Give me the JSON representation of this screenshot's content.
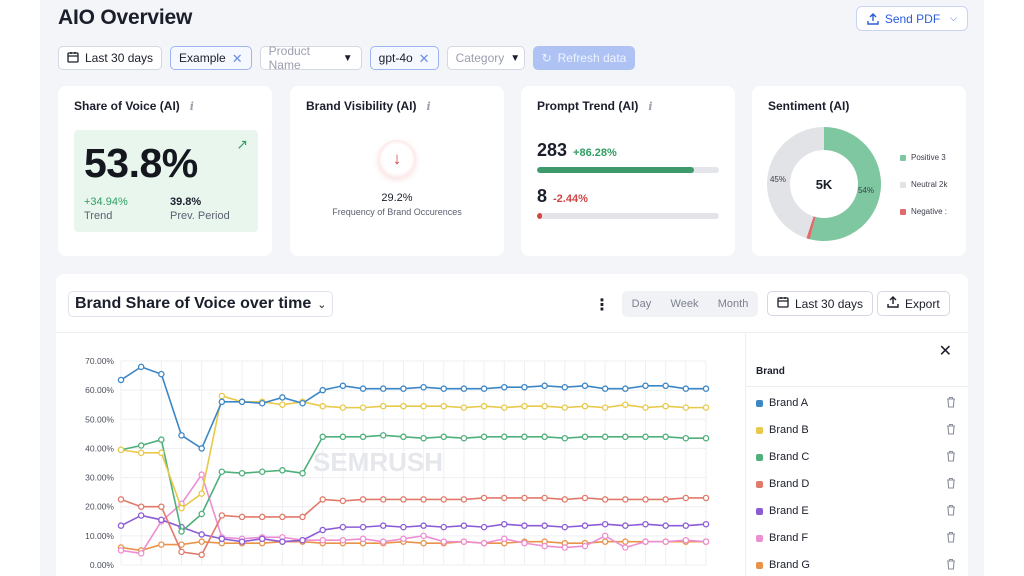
{
  "header": {
    "title": "AIO Overview",
    "send_pdf_label": "Send PDF"
  },
  "filters": {
    "date_range": "Last 30 days",
    "tag_example": "Example",
    "product_placeholder": "Product Name",
    "tag_model": "gpt-4o",
    "category_placeholder": "Category",
    "refresh_label": "Refresh data"
  },
  "cards": {
    "share_of_voice": {
      "title": "Share of Voice (AI)",
      "value": "53.8%",
      "trend_value": "+34.94%",
      "trend_label": "Trend",
      "prev_value": "39.8%",
      "prev_label": "Prev. Period"
    },
    "brand_visibility": {
      "title": "Brand Visibility (AI)",
      "value": "29.2%",
      "label": "Frequency of Brand Occurences"
    },
    "prompt_trend": {
      "title": "Prompt Trend (AI)",
      "rows": [
        {
          "value": "283",
          "change": "+86.28%",
          "fill": 0.86
        },
        {
          "value": "8",
          "change": "-2.44%",
          "fill": 0.02
        }
      ]
    },
    "sentiment": {
      "title": "Sentiment (AI)",
      "center": "5K",
      "slices": [
        {
          "label": "Positive 3",
          "pct_label": "54%",
          "value": 54,
          "color": "#7fc7a0"
        },
        {
          "label": "Neutral 2k",
          "pct_label": "45%",
          "value": 45,
          "color": "#e2e3e6"
        },
        {
          "label": "Negative :",
          "pct_label": "",
          "value": 1,
          "color": "#e16a6a"
        }
      ]
    }
  },
  "panel": {
    "title": "Brand Share of Voice over time",
    "granularity": [
      "Day",
      "Week",
      "Month"
    ],
    "date_range": "Last 30 days",
    "export_label": "Export",
    "brand_header": "Brand",
    "watermark": "SEMRUSH",
    "brands": [
      {
        "name": "Brand A",
        "color": "#3d86c6"
      },
      {
        "name": "Brand B",
        "color": "#e8c94a"
      },
      {
        "name": "Brand C",
        "color": "#4fb07b"
      },
      {
        "name": "Brand D",
        "color": "#e07a6a"
      },
      {
        "name": "Brand E",
        "color": "#8c5cd6"
      },
      {
        "name": "Brand F",
        "color": "#ec8fd2"
      },
      {
        "name": "Brand G",
        "color": "#e9934a"
      }
    ]
  },
  "chart_data": {
    "type": "line",
    "ylim": [
      0,
      70
    ],
    "yticks": [
      "0.00%",
      "10.00%",
      "20.00%",
      "30.00%",
      "40.00%",
      "50.00%",
      "60.00%",
      "70.00%"
    ],
    "x": [
      1,
      2,
      3,
      4,
      5,
      6,
      7,
      8,
      9,
      10,
      11,
      12,
      13,
      14,
      15,
      16,
      17,
      18,
      19,
      20,
      21,
      22,
      23,
      24,
      25,
      26,
      27,
      28,
      29,
      30
    ],
    "series": [
      {
        "name": "Brand A",
        "color": "#3d86c6",
        "values": [
          63.5,
          68,
          65.5,
          44.5,
          40,
          56,
          56,
          55.5,
          57.5,
          55.5,
          60,
          61.5,
          60.5,
          60.5,
          60.5,
          61,
          60.5,
          60.5,
          60.5,
          61,
          61,
          61.5,
          61,
          61.5,
          60.5,
          60.5,
          61.5,
          61.5,
          60.5,
          60.5
        ]
      },
      {
        "name": "Brand B",
        "color": "#e8c94a",
        "values": [
          39.5,
          38.5,
          38.5,
          19.5,
          24.5,
          58,
          56,
          56,
          55,
          56,
          54.5,
          54,
          54,
          54.5,
          54.5,
          54.5,
          54.5,
          54,
          54.5,
          54,
          54.5,
          54.5,
          54,
          54.5,
          54,
          55,
          54,
          54.5,
          54,
          54
        ]
      },
      {
        "name": "Brand C",
        "color": "#4fb07b",
        "values": [
          39.5,
          41,
          43,
          11.5,
          17.5,
          32,
          31.5,
          32,
          32.5,
          31.5,
          44,
          44,
          44,
          44.5,
          44,
          43.5,
          44,
          43.5,
          44,
          44,
          44,
          44,
          43.5,
          44,
          44,
          44,
          44,
          44,
          43.5,
          43.5
        ]
      },
      {
        "name": "Brand D",
        "color": "#e07a6a",
        "values": [
          22.5,
          20,
          20,
          4.5,
          3.5,
          17,
          16.5,
          16.5,
          16.5,
          16.5,
          22.5,
          22,
          22.5,
          22.5,
          22.5,
          22.5,
          22.5,
          22.5,
          23,
          23,
          23,
          23,
          22.5,
          23,
          22.5,
          22.5,
          22.5,
          22.5,
          23,
          23
        ]
      },
      {
        "name": "Brand E",
        "color": "#8c5cd6",
        "values": [
          13.5,
          17,
          15.5,
          13,
          10.5,
          9,
          8,
          9,
          8,
          8.5,
          12,
          13,
          13,
          13.5,
          13,
          13.5,
          13,
          13.5,
          13,
          14,
          13.5,
          13.5,
          13,
          13.5,
          14,
          13.5,
          14,
          13.5,
          13.5,
          14
        ]
      },
      {
        "name": "Brand F",
        "color": "#ec8fd2",
        "values": [
          5,
          4,
          15,
          21,
          31,
          9.5,
          9,
          9.5,
          9.5,
          8.5,
          8.5,
          8.5,
          9,
          8,
          9,
          10,
          8,
          8,
          7.5,
          9,
          7.5,
          6.5,
          6,
          6.5,
          10,
          6,
          8,
          8,
          8.5,
          8
        ]
      },
      {
        "name": "Brand G",
        "color": "#e9934a",
        "values": [
          6,
          5,
          7,
          7,
          8,
          7.5,
          7.5,
          7.5,
          8,
          8,
          7.5,
          7.5,
          7.5,
          7.5,
          8,
          7.5,
          7.5,
          8,
          7.5,
          7.5,
          8,
          8,
          7.5,
          7.5,
          8,
          8,
          8,
          8,
          8,
          8
        ]
      }
    ]
  }
}
